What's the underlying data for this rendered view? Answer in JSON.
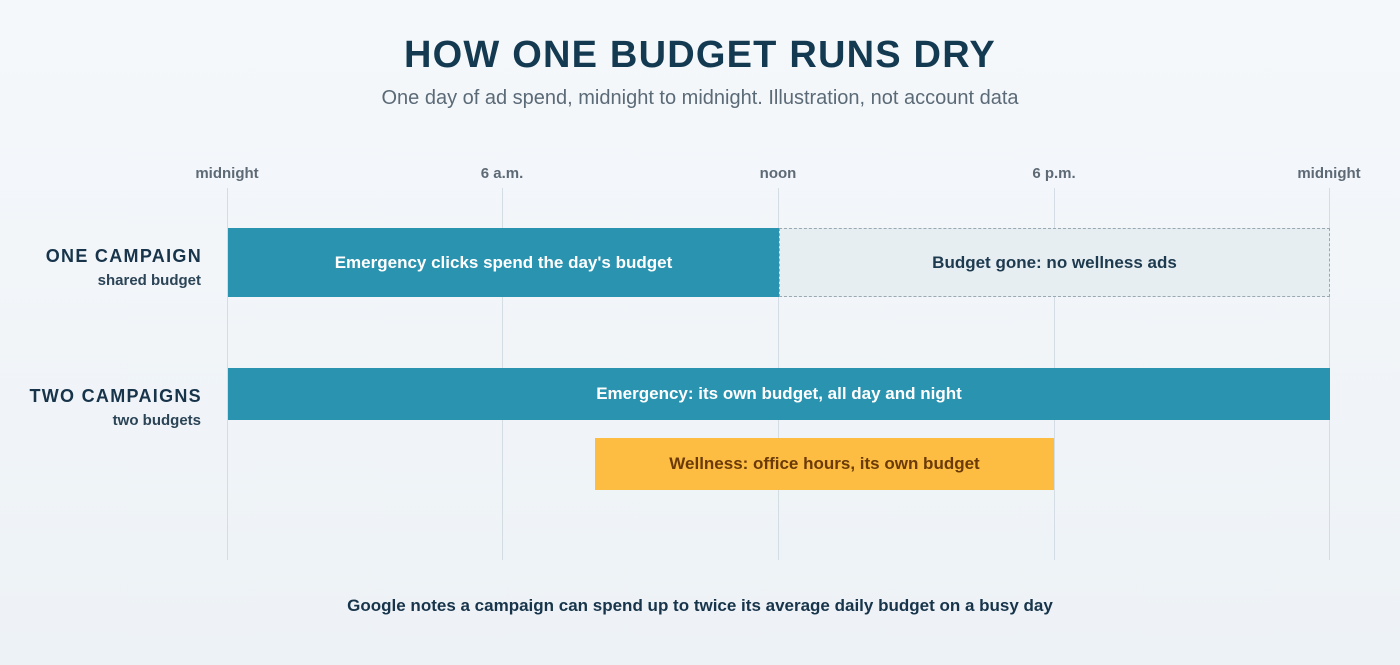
{
  "header": {
    "title": "HOW ONE BUDGET RUNS DRY",
    "subtitle": "One day of ad spend, midnight to midnight. Illustration, not account data"
  },
  "timeline": {
    "unit": "hours",
    "range": [
      0,
      24
    ],
    "ticks": [
      {
        "hour": 0,
        "label": "midnight"
      },
      {
        "hour": 6,
        "label": "6 a.m."
      },
      {
        "hour": 12,
        "label": "noon"
      },
      {
        "hour": 18,
        "label": "6 p.m."
      },
      {
        "hour": 24,
        "label": "midnight"
      }
    ]
  },
  "rows": [
    {
      "title": "ONE CAMPAIGN",
      "subtitle": "shared budget",
      "bars": [
        {
          "label": "Emergency clicks spend the day's budget",
          "start": 0,
          "end": 12,
          "style": "emergency"
        },
        {
          "label": "Budget gone: no wellness ads",
          "start": 12,
          "end": 24,
          "style": "gone"
        }
      ]
    },
    {
      "title": "TWO CAMPAIGNS",
      "subtitle": "two budgets",
      "bars": [
        {
          "label": "Emergency: its own budget, all day and night",
          "start": 0,
          "end": 24,
          "style": "emergency"
        },
        {
          "label": "Wellness: office hours, its own budget",
          "start": 8,
          "end": 18,
          "style": "wellness"
        }
      ]
    }
  ],
  "colors": {
    "emergency": "#2a93b0",
    "gone": "#e6eef2",
    "wellness": "#fcbd42",
    "title": "#143a52"
  },
  "footnote": "Google notes a campaign can spend up to twice its average daily budget on a busy day"
}
